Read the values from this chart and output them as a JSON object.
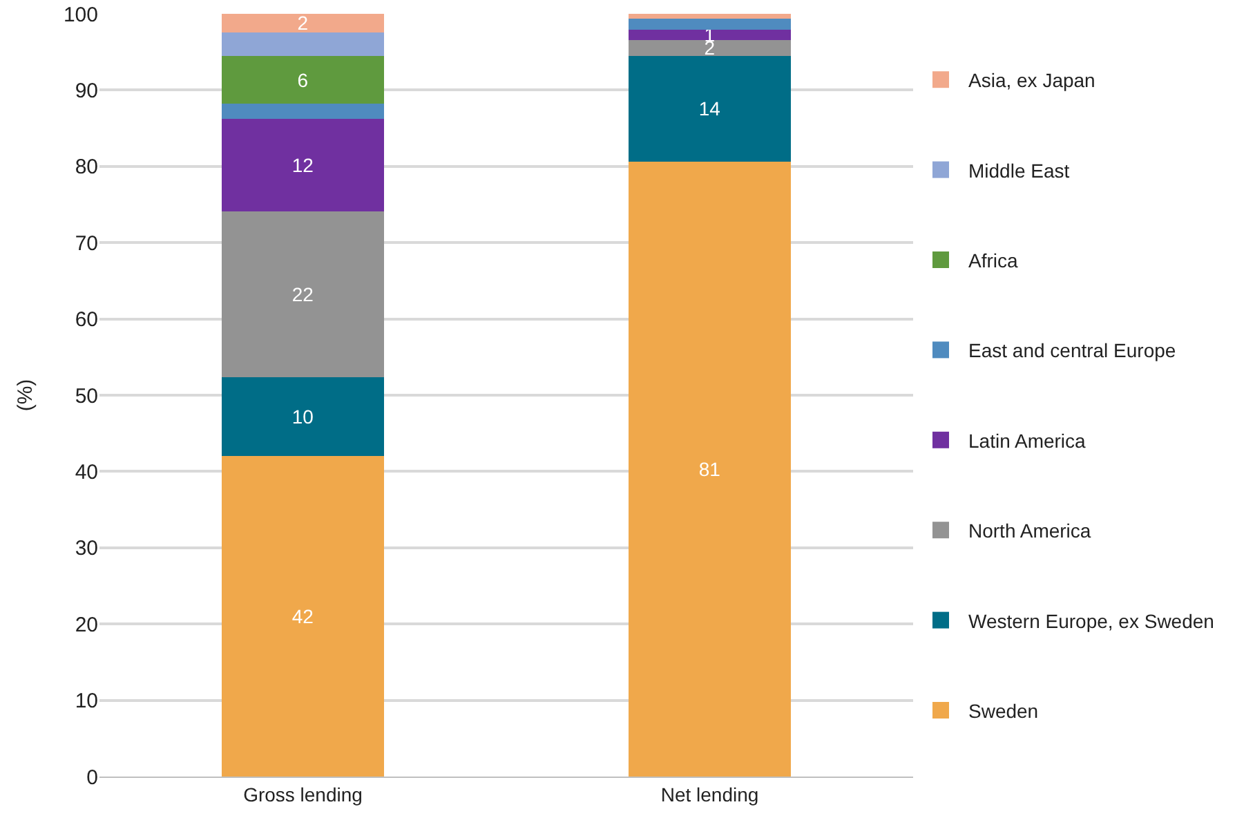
{
  "chart_data": {
    "type": "bar",
    "stacked": true,
    "ylabel": "(%)",
    "categories": [
      "Gross lending",
      "Net lending"
    ],
    "ylim": [
      0,
      100
    ],
    "yticks": [
      0,
      10,
      20,
      30,
      40,
      50,
      60,
      70,
      80,
      90,
      100
    ],
    "grid": "y",
    "legend": "right",
    "series": [
      {
        "name": "Sweden",
        "color": "#f0a84b",
        "values": [
          42.0,
          80.6
        ],
        "value_labels": [
          "42",
          "81"
        ]
      },
      {
        "name": "Western Europe, ex Sweden",
        "color": "#006d87",
        "values": [
          10.4,
          13.9
        ],
        "value_labels": [
          "10",
          "14"
        ]
      },
      {
        "name": "North America",
        "color": "#939393",
        "values": [
          21.7,
          2.1
        ],
        "value_labels": [
          "22",
          "2"
        ]
      },
      {
        "name": "Latin America",
        "color": "#7030a0",
        "values": [
          12.1,
          1.3
        ],
        "value_labels": [
          "12",
          "1"
        ]
      },
      {
        "name": "East and central Europe",
        "color": "#4f8bbf",
        "values": [
          2.0,
          1.5
        ],
        "value_labels": [
          null,
          null
        ]
      },
      {
        "name": "Africa",
        "color": "#5f9a3e",
        "values": [
          6.3,
          0
        ],
        "value_labels": [
          "6",
          null
        ]
      },
      {
        "name": "Middle East",
        "color": "#8fa6d6",
        "values": [
          3.1,
          0
        ],
        "value_labels": [
          null,
          null
        ]
      },
      {
        "name": "Asia, ex Japan",
        "color": "#f2a98b",
        "values": [
          2.4,
          0.6
        ],
        "value_labels": [
          "2",
          null
        ]
      }
    ]
  }
}
